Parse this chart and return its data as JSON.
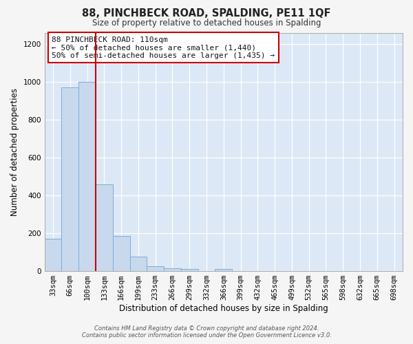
{
  "title": "88, PINCHBECK ROAD, SPALDING, PE11 1QF",
  "subtitle": "Size of property relative to detached houses in Spalding",
  "xlabel": "Distribution of detached houses by size in Spalding",
  "ylabel": "Number of detached properties",
  "bin_labels": [
    "33sqm",
    "66sqm",
    "100sqm",
    "133sqm",
    "166sqm",
    "199sqm",
    "233sqm",
    "266sqm",
    "299sqm",
    "332sqm",
    "366sqm",
    "399sqm",
    "432sqm",
    "465sqm",
    "499sqm",
    "532sqm",
    "565sqm",
    "598sqm",
    "632sqm",
    "665sqm",
    "698sqm"
  ],
  "bar_values": [
    170,
    970,
    1000,
    460,
    185,
    75,
    25,
    15,
    10,
    0,
    10,
    0,
    0,
    0,
    0,
    0,
    0,
    0,
    0,
    0,
    0
  ],
  "bar_color": "#c8d9ee",
  "bar_edge_color": "#7aadd4",
  "vline_color": "#cc0000",
  "ylim": [
    0,
    1260
  ],
  "yticks": [
    0,
    200,
    400,
    600,
    800,
    1000,
    1200
  ],
  "annotation_line1": "88 PINCHBECK ROAD: 110sqm",
  "annotation_line2": "← 50% of detached houses are smaller (1,440)",
  "annotation_line3": "50% of semi-detached houses are larger (1,435) →",
  "annotation_box_color": "#ffffff",
  "annotation_box_edge": "#cc0000",
  "footer_line1": "Contains HM Land Registry data © Crown copyright and database right 2024.",
  "footer_line2": "Contains public sector information licensed under the Open Government Licence v3.0.",
  "plot_background": "#dce8f5",
  "fig_background": "#f5f5f5"
}
